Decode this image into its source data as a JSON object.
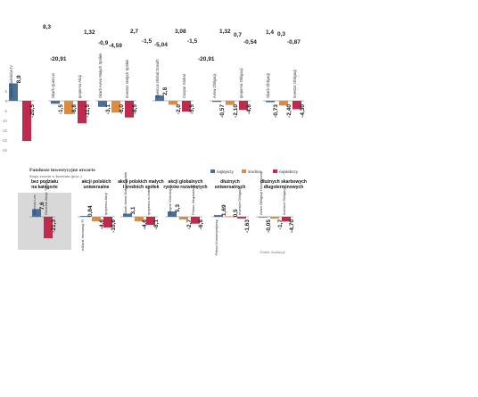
{
  "colors": {
    "best": "#4a6f9a",
    "average": "#e08a3c",
    "worst": "#c02a4c",
    "highlight": "#d8d8d8",
    "zero_line": "#777777"
  },
  "floating_labels": [
    {
      "text": "8,3"
    },
    {
      "text": "-20,91"
    },
    {
      "text": "1,32"
    },
    {
      "text": "-0,9"
    },
    {
      "text": "-4,59"
    },
    {
      "text": "2,7"
    },
    {
      "text": "-1,5"
    },
    {
      "text": "-5,04"
    },
    {
      "text": "3,08"
    },
    {
      "text": "-1,5"
    },
    {
      "text": "-20,91"
    },
    {
      "text": "1,32"
    },
    {
      "text": "0,7"
    },
    {
      "text": "-0,54"
    },
    {
      "text": "1,4"
    },
    {
      "text": "0,3"
    },
    {
      "text": "-0,87"
    }
  ],
  "chart_data": [
    {
      "type": "bar",
      "name": "top-panel",
      "ylim": [
        -25,
        12
      ],
      "yticks": [
        "5",
        "0",
        "-5",
        "-10",
        "-15",
        "-20",
        "-25"
      ],
      "groups": [
        {
          "bars": [
            {
              "value": 8.9,
              "label": "8,9",
              "series": "best",
              "fund": "Opera Dłużników IV"
            },
            {
              "value": -20.5,
              "label": "-20,5",
              "series": "worst",
              "fund": ""
            }
          ]
        },
        {
          "bars": [
            {
              "value": -1.5,
              "label": "-1,5",
              "series": "best",
              "fund": "Skarb Quercus"
            },
            {
              "value": -6.8,
              "label": "-6,8",
              "series": "average",
              "fund": ""
            },
            {
              "value": -11.5,
              "label": "-11,5",
              "series": "worst",
              "fund": "Ipopema Akcji"
            }
          ]
        },
        {
          "bars": [
            {
              "value": -3.1,
              "label": "-3,1",
              "series": "best",
              "fund": "Skarb Aviva Małych Spółek"
            },
            {
              "value": -6.0,
              "label": "-6,0",
              "series": "average",
              "fund": ""
            },
            {
              "value": -8.5,
              "label": "-8,5",
              "series": "worst",
              "fund": "Investor Małych Spółek"
            }
          ]
        },
        {
          "bars": [
            {
              "value": 2.8,
              "label": "2,8",
              "series": "best",
              "fund": "Quercus Global Growth"
            },
            {
              "value": -2.0,
              "label": "-2,0",
              "series": "average",
              "fund": ""
            },
            {
              "value": -5.5,
              "label": "-5,5",
              "series": "worst",
              "fund": "Caspar Global"
            }
          ]
        },
        {
          "bars": [
            {
              "value": -0.57,
              "label": "-0,57",
              "series": "best",
              "fund": "Aviva Obligacji"
            },
            {
              "value": -2.1,
              "label": "-2,10",
              "series": "average",
              "fund": ""
            },
            {
              "value": -4.6,
              "label": "-4,6",
              "series": "worst",
              "fund": "Ipopema Obligacji"
            }
          ]
        },
        {
          "bars": [
            {
              "value": -0.73,
              "label": "-0,73",
              "series": "best",
              "fund": "Skarb Obligacji"
            },
            {
              "value": -2.4,
              "label": "-2,40",
              "series": "average",
              "fund": ""
            },
            {
              "value": -4.3,
              "label": "-4,30",
              "series": "worst",
              "fund": "Investor Obligacji"
            }
          ]
        }
      ]
    },
    {
      "type": "bar",
      "name": "bottom-panel",
      "title": "Fundusze inwestycyjne otwarte",
      "subtitle": "Stopy zwrotu w kwietniu (proc.)",
      "legend": [
        {
          "series": "best",
          "label": "najlepszy"
        },
        {
          "series": "average",
          "label": "średnia"
        },
        {
          "series": "worst",
          "label": "najsłabszy"
        }
      ],
      "legend_position": "top-right",
      "ylim": [
        -25,
        10
      ],
      "yticks": [
        "10",
        "5",
        "0",
        "-10",
        "-20"
      ],
      "source": "Źródło: Analizy.pl",
      "groups": [
        {
          "category": "bez podziału na kategorie",
          "highlight": true,
          "bars": [
            {
              "value": 7.6,
              "label": "7,6",
              "series": "best",
              "fund": "Quercus Lev"
            },
            {
              "value": -21.3,
              "label": "-21,3",
              "series": "worst",
              "fund": "Generali Akcje Turcji"
            }
          ]
        },
        {
          "category": "akcji polskich uniwersalne",
          "bars": [
            {
              "value": 0.84,
              "label": "0,84",
              "series": "best",
              "fund": "mBank Innowacji FI"
            },
            {
              "value": -4.6,
              "label": "-4,6",
              "series": "average",
              "fund": ""
            },
            {
              "value": -10.6,
              "label": "-10,6",
              "series": "worst",
              "fund": "Ipopema Akcji"
            }
          ]
        },
        {
          "category": "akcji polskich małych i średnich spółek",
          "bars": [
            {
              "value": 3.1,
              "label": "3,1",
              "series": "best",
              "fund": "Skarb Aviva Małych Spółek"
            },
            {
              "value": -4.6,
              "label": "-4,6",
              "series": "average",
              "fund": ""
            },
            {
              "value": -8.1,
              "label": "-8,1",
              "series": "worst",
              "fund": "Ipopema m-Indeks"
            }
          ]
        },
        {
          "category": "akcji globalnych rynków rozwiniętych",
          "bars": [
            {
              "value": 5.3,
              "label": "5,3",
              "series": "best",
              "fund": "Caspar Globalny"
            },
            {
              "value": -2.7,
              "label": "-2,7",
              "series": "average",
              "fund": ""
            },
            {
              "value": -6.8,
              "label": "-6,8",
              "series": "worst",
              "fund": "Pekao Megatrendy"
            }
          ]
        },
        {
          "category": "dłużnych uniwersalnych",
          "bars": [
            {
              "value": 1.69,
              "label": "1,69",
              "series": "best",
              "fund": "Pekao Konserwatywny"
            },
            {
              "value": 0.5,
              "label": "0,5",
              "series": "average",
              "fund": ""
            },
            {
              "value": -1.63,
              "label": "-1,63",
              "series": "worst",
              "fund": "Investor Obligacji"
            }
          ]
        },
        {
          "category": "dłużnych skarbowych długoterminowych",
          "bars": [
            {
              "value": -0.05,
              "label": "-0,05",
              "series": "best",
              "fund": "Aviva Obligacji Dynamiczny"
            },
            {
              "value": -1.7,
              "label": "-1,7",
              "series": "average",
              "fund": ""
            },
            {
              "value": -4.7,
              "label": "-4,70",
              "series": "worst",
              "fund": "Investor Obligacji"
            }
          ]
        }
      ]
    }
  ]
}
